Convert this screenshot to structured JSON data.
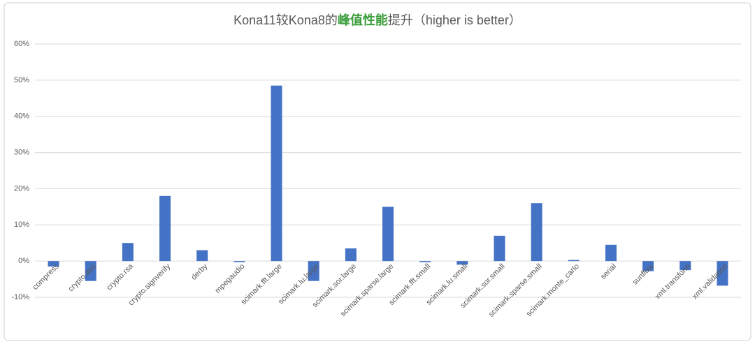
{
  "chart_data": {
    "type": "bar",
    "title": [
      "Kona11较Kona8的",
      "峰值性能",
      "提升（higher is better）"
    ],
    "title_colors": [
      "#595959",
      "#3a9d3a",
      "#595959"
    ],
    "categories": [
      "compress",
      "crypto.aes",
      "crypto.rsa",
      "crypto.signverify",
      "derby",
      "mpegaudio",
      "scimark.fft.large",
      "scimark.lu.large",
      "scimark.sor.large",
      "scimark.sparse.large",
      "scimark.fft.small",
      "scimark.lu.small",
      "scimark.sor.small",
      "scimark.sparse.small",
      "scimark.monte_carlo",
      "serial",
      "sunflow",
      "xml.transform",
      "xml.validation"
    ],
    "values": [
      -1.5,
      -5.5,
      5,
      18,
      3,
      -0.3,
      48.5,
      -5.5,
      3.5,
      15,
      -0.3,
      -1,
      7,
      16,
      0.3,
      4.5,
      -2.8,
      -2.5,
      -6.8
    ],
    "color": "#4472c4",
    "ylim": [
      -10,
      60
    ],
    "yticks": [
      {
        "value": -10,
        "label": "-10%"
      },
      {
        "value": 0,
        "label": "0%"
      },
      {
        "value": 10,
        "label": "10%"
      },
      {
        "value": 20,
        "label": "20%"
      },
      {
        "value": 30,
        "label": "30%"
      },
      {
        "value": 40,
        "label": "40%"
      },
      {
        "value": 50,
        "label": "50%"
      },
      {
        "value": 60,
        "label": "60%"
      }
    ],
    "grid": true
  }
}
